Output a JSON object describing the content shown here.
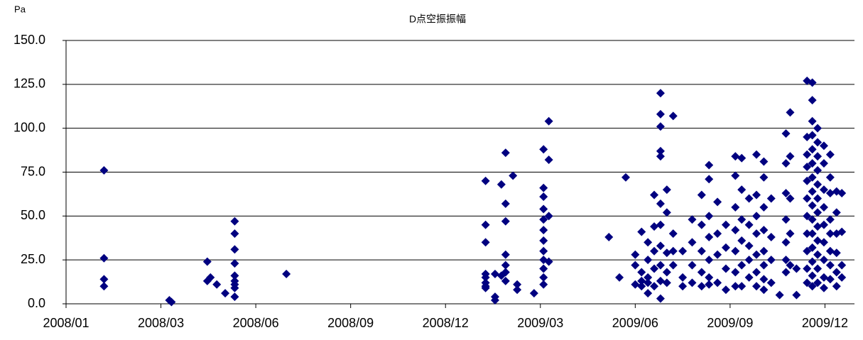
{
  "chart_data": {
    "type": "scatter",
    "title": "D点空振振幅",
    "y_label": "Pa",
    "color": "#000080",
    "grid": true,
    "xlim": [
      39448,
      40196
    ],
    "xticks": [
      {
        "value": 39448,
        "label": "2008/01"
      },
      {
        "value": 39538,
        "label": "2008/03"
      },
      {
        "value": 39628,
        "label": "2008/06"
      },
      {
        "value": 39718,
        "label": "2008/09"
      },
      {
        "value": 39808,
        "label": "2008/12"
      },
      {
        "value": 39898,
        "label": "2009/03"
      },
      {
        "value": 39988,
        "label": "2009/06"
      },
      {
        "value": 40078,
        "label": "2009/09"
      },
      {
        "value": 40168,
        "label": "2009/12"
      }
    ],
    "ylim": [
      0,
      150
    ],
    "yticks": [
      {
        "value": 0,
        "label": "0.0"
      },
      {
        "value": 25,
        "label": "25.0"
      },
      {
        "value": 50,
        "label": "50.0"
      },
      {
        "value": 75,
        "label": "75.0"
      },
      {
        "value": 100,
        "label": "100.0"
      },
      {
        "value": 125,
        "label": "125.0"
      },
      {
        "value": 150,
        "label": "150.0"
      }
    ],
    "x": [
      39484,
      39484,
      39484,
      39484,
      39546,
      39548,
      39582,
      39582,
      39585,
      39591,
      39599,
      39608,
      39608,
      39608,
      39608,
      39608,
      39608,
      39608,
      39608,
      39608,
      39657,
      39846,
      39846,
      39846,
      39846,
      39846,
      39846,
      39846,
      39846,
      39855,
      39855,
      39855,
      39861,
      39861,
      39865,
      39865,
      39865,
      39865,
      39865,
      39865,
      39865,
      39872,
      39876,
      39876,
      39892,
      39901,
      39901,
      39901,
      39901,
      39901,
      39901,
      39901,
      39901,
      39901,
      39901,
      39901,
      39901,
      39906,
      39906,
      39906,
      39906,
      39963,
      39973,
      39979,
      39988,
      39988,
      39988,
      39994,
      39994,
      39994,
      39994,
      40000,
      40000,
      40000,
      40000,
      40000,
      40006,
      40006,
      40006,
      40006,
      40006,
      40012,
      40012,
      40012,
      40012,
      40012,
      40012,
      40012,
      40012,
      40012,
      40012,
      40012,
      40018,
      40018,
      40018,
      40018,
      40018,
      40024,
      40024,
      40024,
      40024,
      40033,
      40033,
      40033,
      40042,
      40042,
      40042,
      40042,
      40051,
      40051,
      40051,
      40051,
      40051,
      40058,
      40058,
      40058,
      40058,
      40058,
      40058,
      40058,
      40066,
      40066,
      40066,
      40066,
      40074,
      40074,
      40074,
      40074,
      40083,
      40083,
      40083,
      40083,
      40083,
      40083,
      40083,
      40089,
      40089,
      40089,
      40089,
      40089,
      40089,
      40096,
      40096,
      40096,
      40096,
      40096,
      40103,
      40103,
      40103,
      40103,
      40103,
      40103,
      40103,
      40110,
      40110,
      40110,
      40110,
      40110,
      40110,
      40110,
      40110,
      40117,
      40117,
      40117,
      40117,
      40125,
      40131,
      40131,
      40131,
      40131,
      40131,
      40131,
      40131,
      40135,
      40135,
      40135,
      40135,
      40135,
      40141,
      40141,
      40151,
      40151,
      40151,
      40151,
      40151,
      40151,
      40151,
      40151,
      40151,
      40151,
      40151,
      40156,
      40156,
      40156,
      40156,
      40156,
      40156,
      40156,
      40156,
      40156,
      40156,
      40156,
      40156,
      40156,
      40156,
      40156,
      40161,
      40161,
      40161,
      40161,
      40161,
      40161,
      40161,
      40161,
      40161,
      40161,
      40161,
      40161,
      40167,
      40167,
      40167,
      40167,
      40167,
      40167,
      40167,
      40167,
      40167,
      40173,
      40173,
      40173,
      40173,
      40173,
      40173,
      40173,
      40173,
      40179,
      40179,
      40179,
      40179,
      40179,
      40179,
      40184,
      40184,
      40184,
      40184
    ],
    "values": [
      76,
      26,
      14,
      10,
      2,
      1,
      24,
      13,
      15,
      11,
      6,
      47,
      40,
      31,
      23,
      16,
      13,
      11,
      9,
      4,
      17,
      70,
      45,
      35,
      17,
      15,
      12,
      10,
      9,
      17,
      4,
      2,
      68,
      16,
      86,
      57,
      47,
      28,
      22,
      18,
      13,
      73,
      11,
      8,
      6,
      88,
      66,
      61,
      54,
      48,
      42,
      36,
      30,
      25,
      20,
      15,
      11,
      104,
      82,
      50,
      24,
      38,
      15,
      72,
      11,
      22,
      28,
      41,
      18,
      13,
      10,
      35,
      25,
      15,
      12,
      6,
      62,
      44,
      30,
      20,
      10,
      120,
      108,
      101,
      87,
      84,
      57,
      45,
      33,
      22,
      13,
      3,
      65,
      52,
      29,
      18,
      12,
      107,
      40,
      30,
      22,
      30,
      15,
      10,
      48,
      35,
      22,
      12,
      62,
      45,
      30,
      18,
      10,
      79,
      71,
      50,
      38,
      25,
      15,
      11,
      58,
      40,
      28,
      12,
      45,
      32,
      20,
      8,
      84,
      73,
      55,
      42,
      30,
      18,
      10,
      83,
      65,
      48,
      36,
      22,
      10,
      60,
      45,
      33,
      25,
      15,
      85,
      62,
      50,
      40,
      28,
      18,
      10,
      81,
      72,
      55,
      42,
      30,
      22,
      14,
      8,
      60,
      38,
      25,
      12,
      5,
      97,
      80,
      63,
      48,
      35,
      25,
      18,
      109,
      84,
      60,
      40,
      22,
      20,
      5,
      127,
      95,
      85,
      78,
      70,
      60,
      50,
      40,
      30,
      20,
      12,
      126,
      116,
      104,
      96,
      88,
      80,
      72,
      64,
      56,
      48,
      40,
      32,
      24,
      16,
      10,
      100,
      92,
      84,
      76,
      68,
      60,
      52,
      44,
      36,
      28,
      20,
      12,
      90,
      80,
      65,
      55,
      45,
      35,
      25,
      15,
      9,
      85,
      72,
      63,
      48,
      40,
      30,
      22,
      14,
      64,
      52,
      40,
      29,
      18,
      10,
      63,
      41,
      22,
      15
    ]
  }
}
